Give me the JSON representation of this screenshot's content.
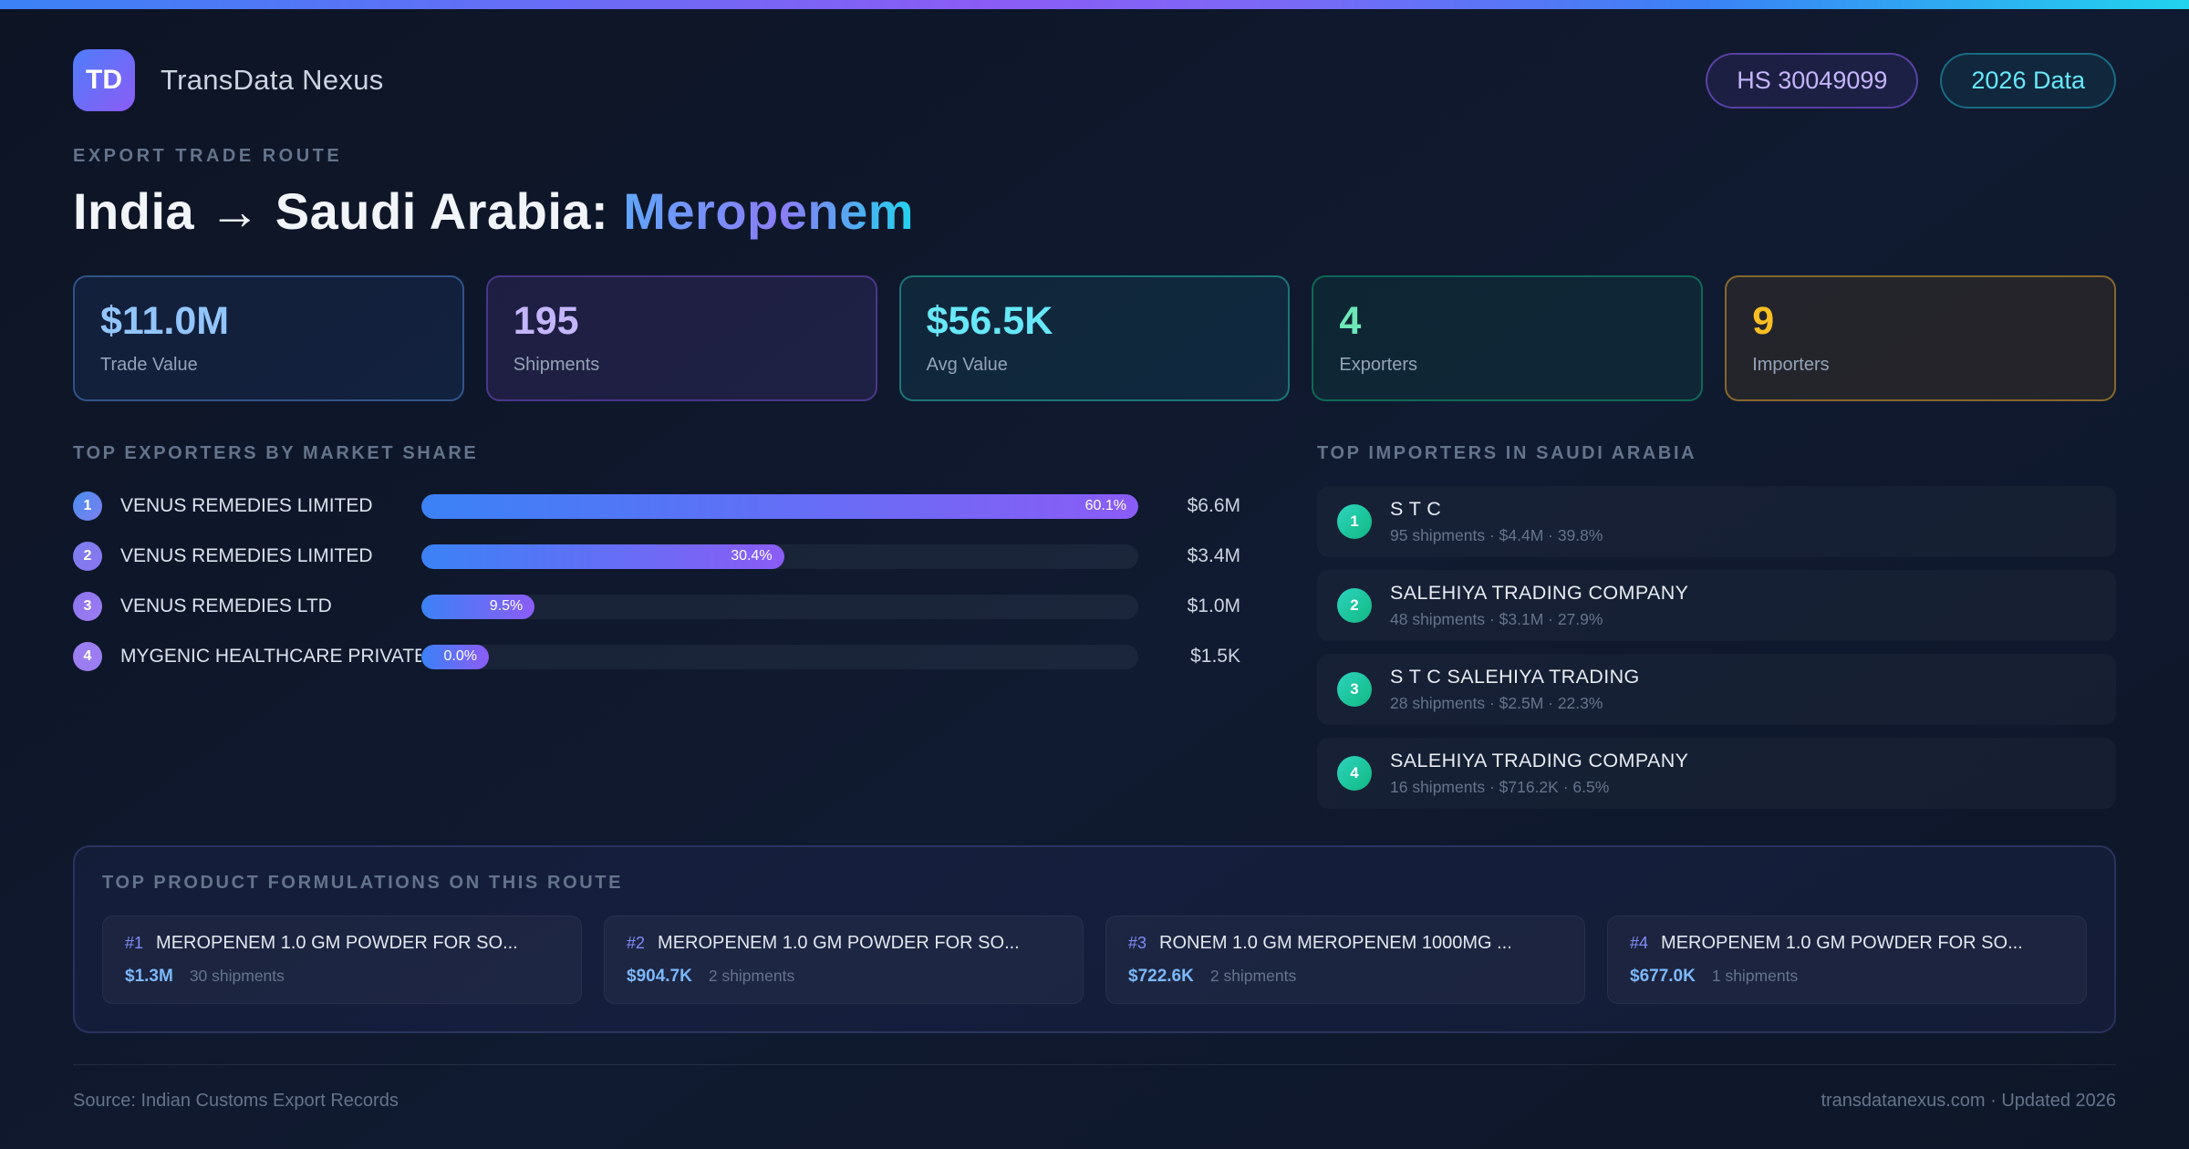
{
  "header": {
    "logo_text": "TD",
    "app_name": "TransData Nexus",
    "badges": [
      {
        "label": "HS 30049099"
      },
      {
        "label": "2026 Data"
      }
    ]
  },
  "hero": {
    "eyebrow": "EXPORT TRADE ROUTE",
    "title_prefix": "India → Saudi Arabia: ",
    "title_highlight": "Meropenem"
  },
  "stats": [
    {
      "value": "$11.0M",
      "label": "Trade Value",
      "theme": "blue"
    },
    {
      "value": "195",
      "label": "Shipments",
      "theme": "purple"
    },
    {
      "value": "$56.5K",
      "label": "Avg Value",
      "theme": "cyan"
    },
    {
      "value": "4",
      "label": "Exporters",
      "theme": "green"
    },
    {
      "value": "9",
      "label": "Importers",
      "theme": "amber"
    }
  ],
  "exporters": {
    "heading": "TOP EXPORTERS BY MARKET SHARE",
    "max_share_pct": 60.1,
    "rank_colors": [
      "#4a8df1",
      "#7b80f0",
      "#8b74ee",
      "#9d7df2"
    ],
    "bar_gradient": [
      "#3b82f6",
      "#8b5cf6"
    ],
    "rows": [
      {
        "rank": "1",
        "name": "VENUS REMEDIES LIMITED",
        "share_pct": 60.1,
        "share_label": "60.1%",
        "value": "$6.6M"
      },
      {
        "rank": "2",
        "name": "VENUS REMEDIES LIMITED",
        "share_pct": 30.4,
        "share_label": "30.4%",
        "value": "$3.4M"
      },
      {
        "rank": "3",
        "name": "VENUS REMEDIES LTD",
        "share_pct": 9.5,
        "share_label": "9.5%",
        "value": "$1.0M"
      },
      {
        "rank": "4",
        "name": "MYGENIC HEALTHCARE PRIVATE...",
        "share_pct": 0.0,
        "share_label": "0.0%",
        "value": "$1.5K"
      }
    ]
  },
  "importers": {
    "heading": "TOP IMPORTERS IN SAUDI ARABIA",
    "rank_color": "#14b8a6",
    "rows": [
      {
        "rank": "1",
        "name": "S T C",
        "meta": "95 shipments · $4.4M · 39.8%"
      },
      {
        "rank": "2",
        "name": "SALEHIYA TRADING COMPANY",
        "meta": "48 shipments · $3.1M · 27.9%"
      },
      {
        "rank": "3",
        "name": "S T C SALEHIYA TRADING",
        "meta": "28 shipments · $2.5M · 22.3%"
      },
      {
        "rank": "4",
        "name": "SALEHIYA TRADING COMPANY",
        "meta": "16 shipments · $716.2K · 6.5%"
      }
    ]
  },
  "products": {
    "heading": "TOP PRODUCT FORMULATIONS ON THIS ROUTE",
    "cards": [
      {
        "rank": "#1",
        "name": "MEROPENEM 1.0 GM POWDER FOR SO...",
        "value": "$1.3M",
        "shipments": "30 shipments"
      },
      {
        "rank": "#2",
        "name": "MEROPENEM 1.0 GM POWDER FOR SO...",
        "value": "$904.7K",
        "shipments": "2 shipments"
      },
      {
        "rank": "#3",
        "name": "RONEM 1.0 GM MEROPENEM 1000MG ...",
        "value": "$722.6K",
        "shipments": "2 shipments"
      },
      {
        "rank": "#4",
        "name": "MEROPENEM 1.0 GM POWDER FOR SO...",
        "value": "$677.0K",
        "shipments": "1 shipments"
      }
    ]
  },
  "footer": {
    "source": "Source: Indian Customs Export Records",
    "site": "transdatanexus.com · Updated 2026"
  }
}
